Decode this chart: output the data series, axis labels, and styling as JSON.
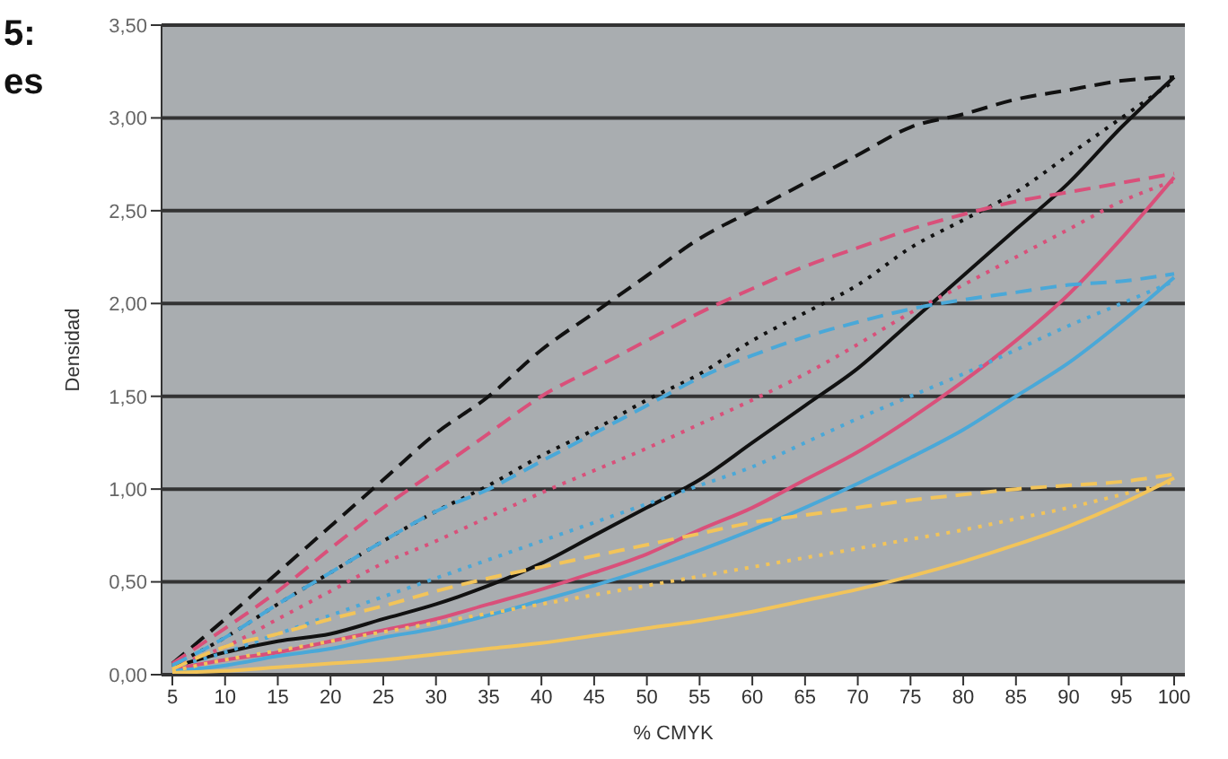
{
  "chart_data": {
    "type": "line",
    "xlabel": "% CMYK",
    "ylabel": "Densidad",
    "annotations": [
      "5:",
      "es"
    ],
    "categories": [
      "5",
      "10",
      "15",
      "20",
      "25",
      "30",
      "35",
      "40",
      "45",
      "50",
      "55",
      "60",
      "65",
      "70",
      "75",
      "80",
      "85",
      "90",
      "95",
      "100"
    ],
    "ylim": [
      0,
      3.5
    ],
    "yticks": [
      {
        "value": 0,
        "label": "0,00"
      },
      {
        "value": 0.5,
        "label": "0,50"
      },
      {
        "value": 1,
        "label": "1,00"
      },
      {
        "value": 1.5,
        "label": "1,50"
      },
      {
        "value": 2,
        "label": "2,00"
      },
      {
        "value": 2.5,
        "label": "2,50"
      },
      {
        "value": 3,
        "label": "3,00"
      },
      {
        "value": 3.5,
        "label": "3,50"
      }
    ],
    "grid": "y",
    "legend": false,
    "marker": "none",
    "series": [
      {
        "color": "#111111",
        "line_style": "dashed",
        "values": [
          0.06,
          0.3,
          0.55,
          0.8,
          1.05,
          1.3,
          1.5,
          1.75,
          1.95,
          2.15,
          2.35,
          2.5,
          2.65,
          2.8,
          2.95,
          3.02,
          3.1,
          3.15,
          3.2,
          3.22
        ]
      },
      {
        "color": "#111111",
        "line_style": "dotted",
        "values": [
          0.05,
          0.2,
          0.38,
          0.55,
          0.72,
          0.88,
          1.02,
          1.18,
          1.32,
          1.48,
          1.62,
          1.8,
          1.95,
          2.1,
          2.3,
          2.45,
          2.6,
          2.8,
          3.0,
          3.2
        ]
      },
      {
        "color": "#111111",
        "line_style": "solid",
        "values": [
          0.04,
          0.12,
          0.18,
          0.22,
          0.3,
          0.38,
          0.48,
          0.6,
          0.75,
          0.9,
          1.05,
          1.25,
          1.45,
          1.65,
          1.9,
          2.15,
          2.4,
          2.65,
          2.95,
          3.22
        ]
      },
      {
        "color": "#d9507a",
        "line_style": "dashed",
        "values": [
          0.06,
          0.25,
          0.45,
          0.68,
          0.9,
          1.1,
          1.3,
          1.5,
          1.65,
          1.8,
          1.95,
          2.08,
          2.2,
          2.3,
          2.4,
          2.48,
          2.55,
          2.6,
          2.65,
          2.7
        ]
      },
      {
        "color": "#d9507a",
        "line_style": "dotted",
        "values": [
          0.05,
          0.15,
          0.3,
          0.45,
          0.6,
          0.72,
          0.85,
          0.98,
          1.1,
          1.22,
          1.35,
          1.48,
          1.62,
          1.78,
          1.95,
          2.1,
          2.25,
          2.4,
          2.55,
          2.66
        ]
      },
      {
        "color": "#d9507a",
        "line_style": "solid",
        "values": [
          0.03,
          0.08,
          0.12,
          0.18,
          0.24,
          0.3,
          0.38,
          0.46,
          0.55,
          0.65,
          0.78,
          0.9,
          1.05,
          1.2,
          1.38,
          1.58,
          1.8,
          2.05,
          2.35,
          2.68
        ]
      },
      {
        "color": "#4aa8d8",
        "line_style": "dashed",
        "values": [
          0.05,
          0.2,
          0.38,
          0.55,
          0.72,
          0.88,
          1.0,
          1.15,
          1.3,
          1.45,
          1.6,
          1.72,
          1.82,
          1.9,
          1.97,
          2.02,
          2.06,
          2.1,
          2.12,
          2.16
        ]
      },
      {
        "color": "#4aa8d8",
        "line_style": "dotted",
        "values": [
          0.04,
          0.12,
          0.22,
          0.32,
          0.42,
          0.52,
          0.62,
          0.72,
          0.82,
          0.92,
          1.02,
          1.12,
          1.25,
          1.38,
          1.5,
          1.62,
          1.75,
          1.88,
          2.0,
          2.12
        ]
      },
      {
        "color": "#4aa8d8",
        "line_style": "solid",
        "values": [
          0.02,
          0.05,
          0.1,
          0.14,
          0.2,
          0.25,
          0.32,
          0.4,
          0.48,
          0.57,
          0.67,
          0.78,
          0.9,
          1.03,
          1.17,
          1.32,
          1.5,
          1.68,
          1.9,
          2.14
        ]
      },
      {
        "color": "#f2c45a",
        "line_style": "dashed",
        "values": [
          0.03,
          0.15,
          0.22,
          0.3,
          0.37,
          0.45,
          0.52,
          0.58,
          0.64,
          0.7,
          0.76,
          0.82,
          0.86,
          0.9,
          0.94,
          0.97,
          1.0,
          1.02,
          1.04,
          1.08
        ]
      },
      {
        "color": "#f2c45a",
        "line_style": "dotted",
        "values": [
          0.02,
          0.08,
          0.13,
          0.18,
          0.23,
          0.28,
          0.33,
          0.38,
          0.43,
          0.48,
          0.53,
          0.58,
          0.63,
          0.68,
          0.73,
          0.78,
          0.84,
          0.9,
          0.97,
          1.04
        ]
      },
      {
        "color": "#f2c45a",
        "line_style": "solid",
        "values": [
          0.01,
          0.02,
          0.04,
          0.06,
          0.08,
          0.11,
          0.14,
          0.17,
          0.21,
          0.25,
          0.29,
          0.34,
          0.4,
          0.46,
          0.53,
          0.61,
          0.7,
          0.8,
          0.92,
          1.06
        ]
      }
    ]
  }
}
